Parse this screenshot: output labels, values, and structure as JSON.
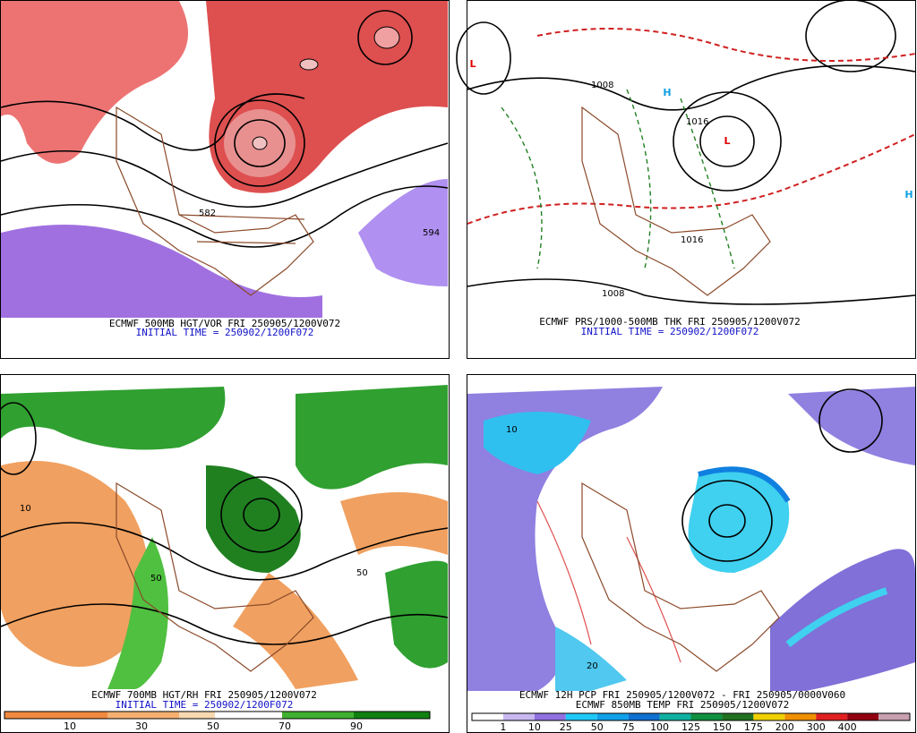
{
  "panels": [
    {
      "caption": "ECMWF 500MB HGT/VOR FRI 250905/1200V072",
      "initial_time": "INITIAL TIME = 250902/1200F072",
      "map_labels": [
        "594",
        "582"
      ]
    },
    {
      "caption": "ECMWF PRS/1000-500MB THK FRI 250905/1200V072",
      "initial_time": "INITIAL TIME = 250902/1200F072",
      "map_labels": [
        "L",
        "L",
        "H",
        "H",
        "1016",
        "1008",
        "1008",
        "1016"
      ]
    },
    {
      "caption": "ECMWF 700MB HGT/RH FRI 250905/1200V072",
      "initial_time": "INITIAL TIME = 250902/1200F072",
      "colorbar": [
        "10",
        "30",
        "50",
        "70",
        "90"
      ],
      "map_labels": [
        "10",
        "50",
        "50"
      ]
    },
    {
      "caption": "ECMWF 12H PCP FRI 250905/1200V072 - FRI 250905/0000V060",
      "caption2": "ECMWF 850MB TEMP FRI 250905/1200V072",
      "colorbar": [
        "1",
        "10",
        "25",
        "50",
        "75",
        "100",
        "125",
        "150",
        "175",
        "200",
        "300",
        "400"
      ],
      "map_labels": [
        "20",
        "10"
      ]
    }
  ]
}
